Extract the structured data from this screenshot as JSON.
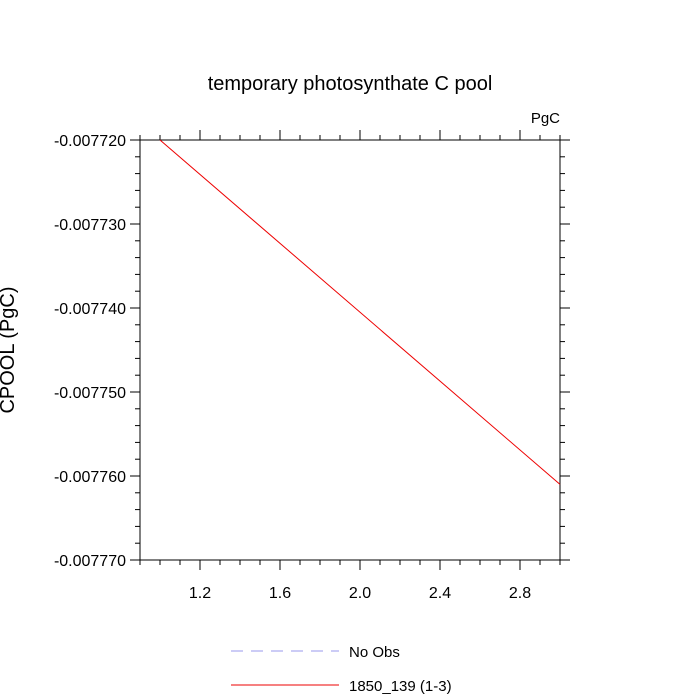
{
  "chart_data": {
    "type": "line",
    "title": "temporary photosynthate C pool",
    "units": "PgC",
    "ylabel": "CPOOL (PgC)",
    "xlabel": "",
    "xlim": [
      0.9,
      3.0
    ],
    "ylim": [
      -0.00777,
      -0.00772
    ],
    "x_ticks": [
      1.2,
      1.6,
      2.0,
      2.4,
      2.8
    ],
    "x_tick_labels": [
      "1.2",
      "1.6",
      "2.0",
      "2.4",
      "2.8"
    ],
    "y_ticks": [
      -0.00772,
      -0.00773,
      -0.00774,
      -0.00775,
      -0.00776,
      -0.00777
    ],
    "y_tick_labels": [
      "-0.007720",
      "-0.007730",
      "-0.007740",
      "-0.007750",
      "-0.007760",
      "-0.007770"
    ],
    "grid": false,
    "legend_position": "bottom",
    "series": [
      {
        "name": "No Obs",
        "color": "#9999ee",
        "dash": "dashed",
        "x": [],
        "y": []
      },
      {
        "name": "1850_139 (1-3)",
        "color": "#ee0000",
        "dash": "solid",
        "x": [
          1.0,
          3.0
        ],
        "y": [
          -0.00772,
          -0.007761
        ]
      }
    ]
  }
}
